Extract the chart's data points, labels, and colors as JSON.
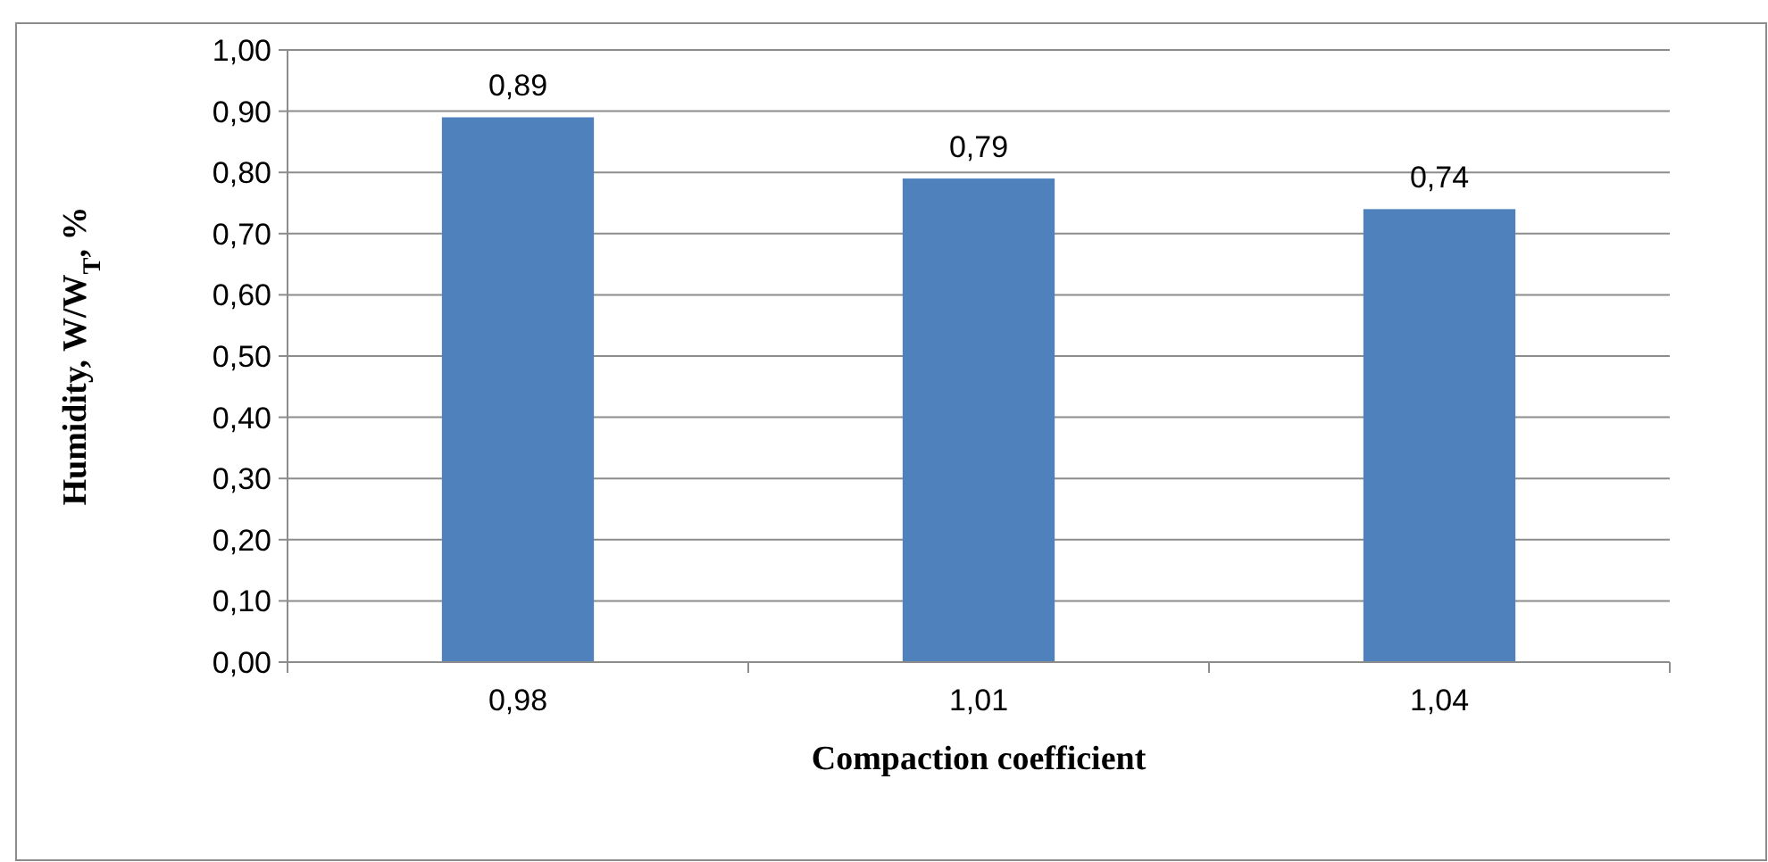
{
  "chart_data": {
    "type": "bar",
    "xlabel": "Compaction coefficient",
    "ylabel": "Humidity, W/W$_{T}$, %",
    "categories": [
      "0,98",
      "1,01",
      "1,04"
    ],
    "values": [
      0.89,
      0.79,
      0.74
    ],
    "value_labels": [
      "0,89",
      "0,79",
      "0,74"
    ],
    "color": "#4f81bd",
    "ylim": [
      0,
      1
    ],
    "yticks": [
      {
        "value": 0,
        "label": "0,00"
      },
      {
        "value": 0.1,
        "label": "0,10"
      },
      {
        "value": 0.2,
        "label": "0,20"
      },
      {
        "value": 0.3,
        "label": "0,30"
      },
      {
        "value": 0.4,
        "label": "0,40"
      },
      {
        "value": 0.5,
        "label": "0,50"
      },
      {
        "value": 0.6,
        "label": "0,60"
      },
      {
        "value": 0.7,
        "label": "0,70"
      },
      {
        "value": 0.8,
        "label": "0,80"
      },
      {
        "value": 0.9,
        "label": "0,90"
      },
      {
        "value": 1,
        "label": "1,00"
      }
    ],
    "grid": "y"
  }
}
